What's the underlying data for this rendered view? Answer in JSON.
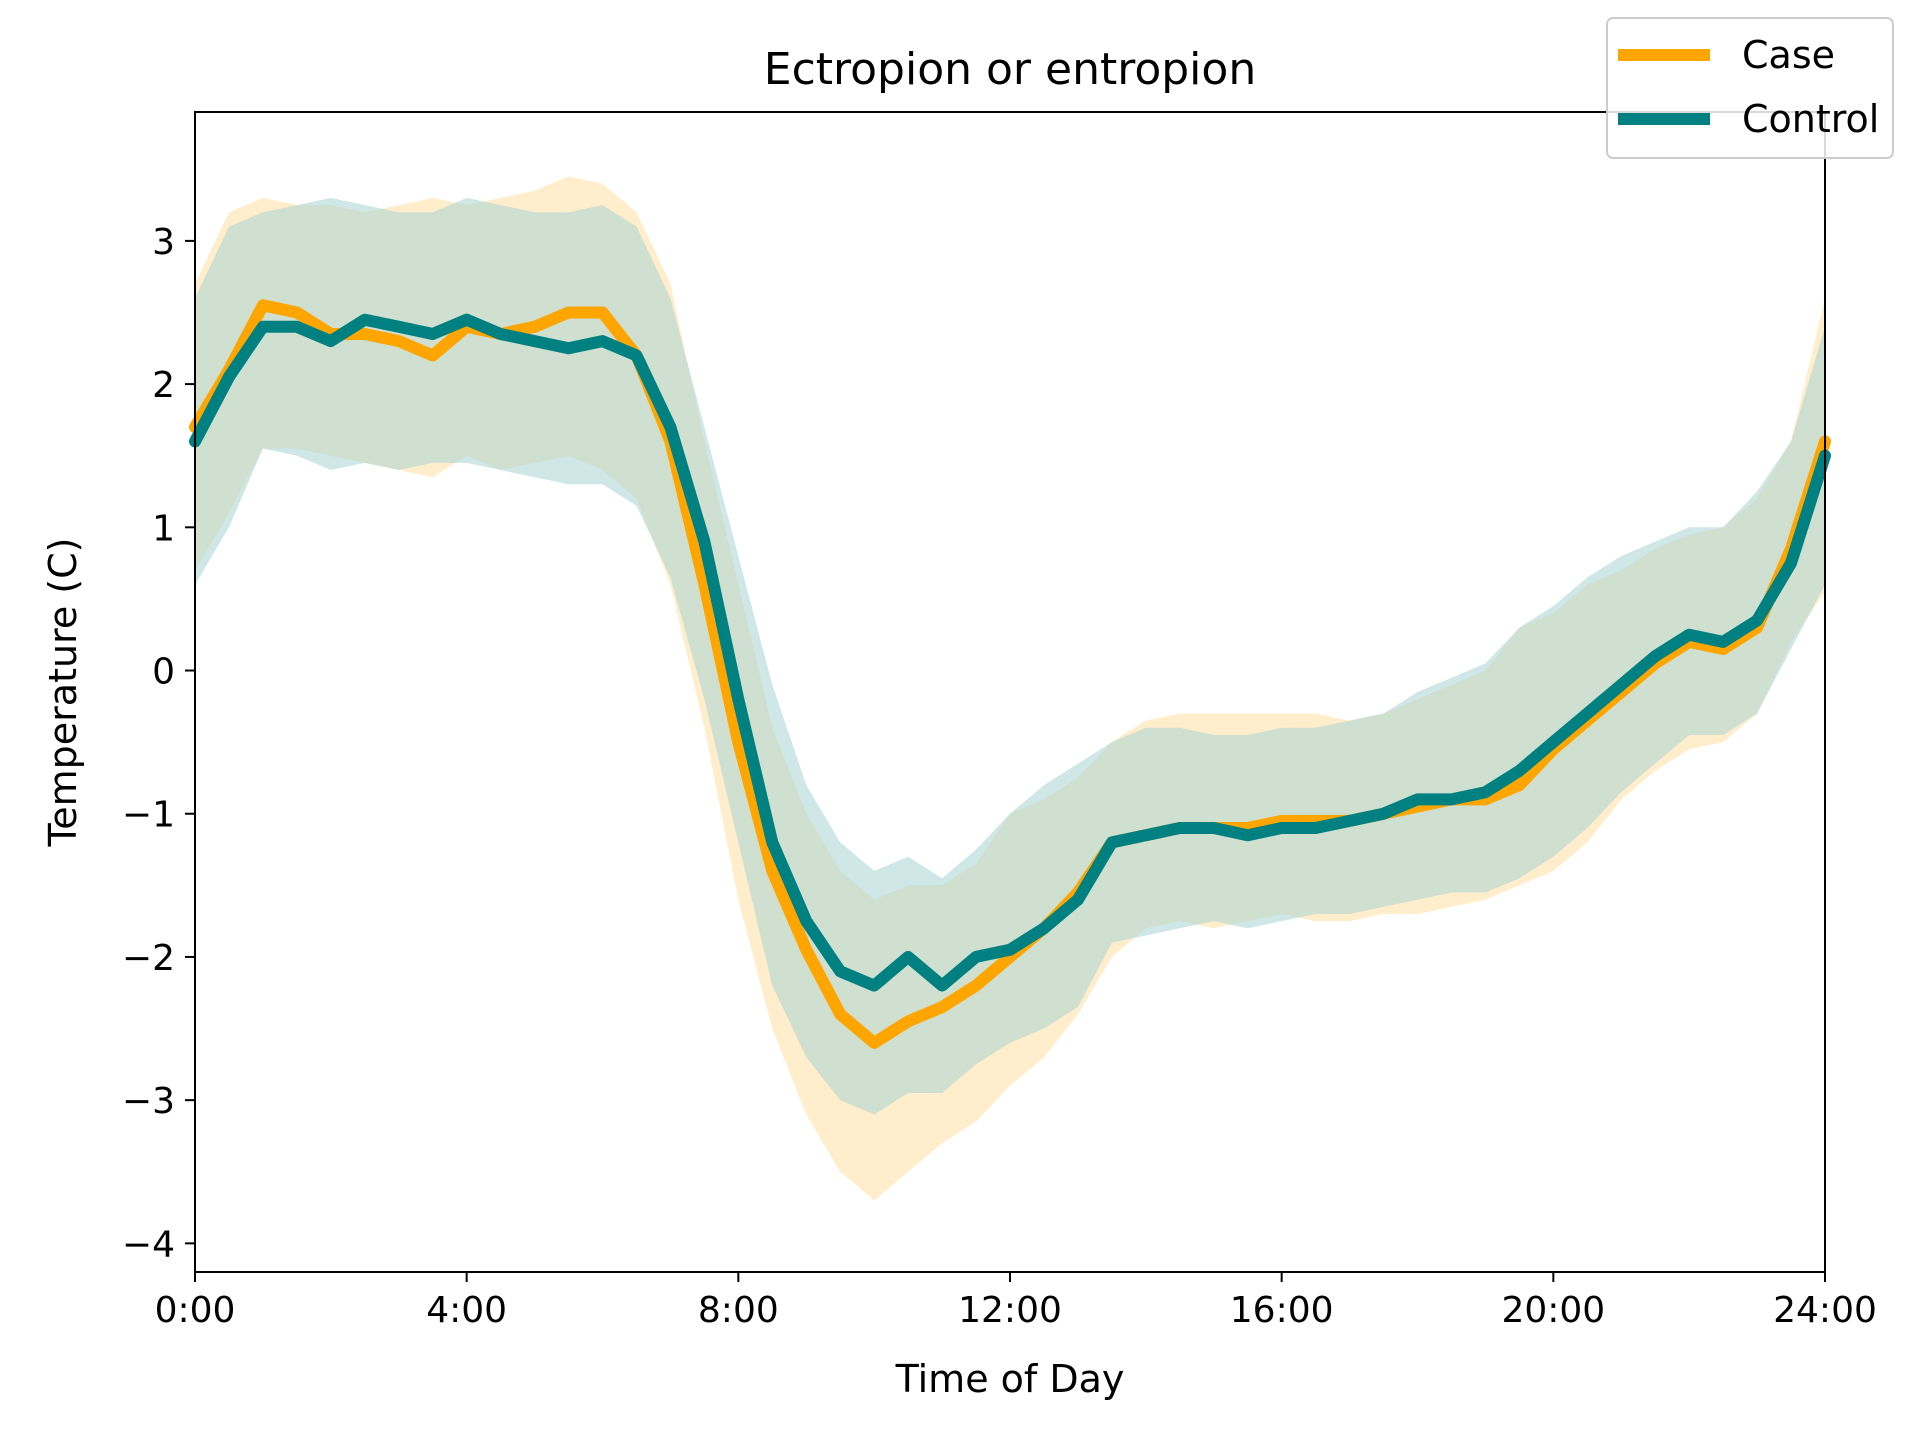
{
  "chart_data": {
    "type": "line",
    "title": "Ectropion or entropion",
    "xlabel": "Time of Day",
    "ylabel": "Temperature (C)",
    "xlim": [
      0,
      24
    ],
    "ylim": [
      -4.2,
      3.9
    ],
    "x_ticks": [
      {
        "value": 0,
        "label": "0:00"
      },
      {
        "value": 4,
        "label": "4:00"
      },
      {
        "value": 8,
        "label": "8:00"
      },
      {
        "value": 12,
        "label": "12:00"
      },
      {
        "value": 16,
        "label": "16:00"
      },
      {
        "value": 20,
        "label": "20:00"
      },
      {
        "value": 24,
        "label": "24:00"
      }
    ],
    "y_ticks": [
      {
        "value": 3,
        "label": "3"
      },
      {
        "value": 2,
        "label": "2"
      },
      {
        "value": 1,
        "label": "1"
      },
      {
        "value": 0,
        "label": "0"
      },
      {
        "value": -1,
        "label": "−1"
      },
      {
        "value": -2,
        "label": "−2"
      },
      {
        "value": -3,
        "label": "−3"
      },
      {
        "value": -4,
        "label": "−4"
      }
    ],
    "grid": false,
    "legend_position": "top-right",
    "x": [
      0,
      0.5,
      1,
      1.5,
      2,
      2.5,
      3,
      3.5,
      4,
      4.5,
      5,
      5.5,
      6,
      6.5,
      7,
      7.5,
      8,
      8.5,
      9,
      9.5,
      10,
      10.5,
      11,
      11.5,
      12,
      12.5,
      13,
      13.5,
      14,
      14.5,
      15,
      15.5,
      16,
      16.5,
      17,
      17.5,
      18,
      18.5,
      19,
      19.5,
      20,
      20.5,
      21,
      21.5,
      22,
      22.5,
      23,
      23.5,
      24
    ],
    "series": [
      {
        "name": "Case",
        "color": "#FFA500",
        "band_color": "#FFE4B0",
        "values": [
          1.7,
          2.1,
          2.55,
          2.5,
          2.35,
          2.35,
          2.3,
          2.2,
          2.4,
          2.35,
          2.4,
          2.5,
          2.5,
          2.2,
          1.6,
          0.6,
          -0.5,
          -1.4,
          -1.95,
          -2.4,
          -2.6,
          -2.45,
          -2.35,
          -2.2,
          -2.0,
          -1.8,
          -1.55,
          -1.2,
          -1.15,
          -1.1,
          -1.1,
          -1.1,
          -1.05,
          -1.05,
          -1.05,
          -1.0,
          -0.95,
          -0.9,
          -0.9,
          -0.8,
          -0.55,
          -0.35,
          -0.15,
          0.05,
          0.2,
          0.15,
          0.3,
          0.85,
          1.6
        ],
        "upper": [
          2.7,
          3.2,
          3.3,
          3.25,
          3.25,
          3.2,
          3.25,
          3.3,
          3.25,
          3.3,
          3.35,
          3.45,
          3.4,
          3.2,
          2.7,
          1.6,
          0.6,
          -0.4,
          -1.0,
          -1.4,
          -1.6,
          -1.5,
          -1.5,
          -1.35,
          -1.0,
          -0.9,
          -0.75,
          -0.5,
          -0.35,
          -0.3,
          -0.3,
          -0.3,
          -0.3,
          -0.3,
          -0.35,
          -0.3,
          -0.2,
          -0.1,
          0.0,
          0.3,
          0.4,
          0.6,
          0.7,
          0.85,
          0.95,
          1.0,
          1.2,
          1.6,
          2.6
        ],
        "lower": [
          0.7,
          1.1,
          1.55,
          1.55,
          1.5,
          1.45,
          1.4,
          1.35,
          1.5,
          1.4,
          1.45,
          1.5,
          1.4,
          1.2,
          0.6,
          -0.4,
          -1.6,
          -2.5,
          -3.1,
          -3.5,
          -3.7,
          -3.5,
          -3.3,
          -3.15,
          -2.9,
          -2.7,
          -2.4,
          -2.0,
          -1.8,
          -1.75,
          -1.8,
          -1.75,
          -1.7,
          -1.75,
          -1.75,
          -1.7,
          -1.7,
          -1.65,
          -1.6,
          -1.5,
          -1.4,
          -1.2,
          -0.9,
          -0.7,
          -0.55,
          -0.5,
          -0.3,
          0.2,
          0.55
        ]
      },
      {
        "name": "Control",
        "color": "#008080",
        "band_color": "#A8D4D4",
        "values": [
          1.6,
          2.05,
          2.4,
          2.4,
          2.3,
          2.45,
          2.4,
          2.35,
          2.45,
          2.35,
          2.3,
          2.25,
          2.3,
          2.2,
          1.7,
          0.9,
          -0.2,
          -1.2,
          -1.75,
          -2.1,
          -2.2,
          -2.0,
          -2.2,
          -2.0,
          -1.95,
          -1.8,
          -1.6,
          -1.2,
          -1.15,
          -1.1,
          -1.1,
          -1.15,
          -1.1,
          -1.1,
          -1.05,
          -1.0,
          -0.9,
          -0.9,
          -0.85,
          -0.7,
          -0.5,
          -0.3,
          -0.1,
          0.1,
          0.25,
          0.2,
          0.35,
          0.75,
          1.5
        ],
        "upper": [
          2.6,
          3.1,
          3.2,
          3.25,
          3.3,
          3.25,
          3.2,
          3.2,
          3.3,
          3.25,
          3.2,
          3.2,
          3.25,
          3.1,
          2.6,
          1.7,
          0.8,
          -0.1,
          -0.8,
          -1.2,
          -1.4,
          -1.3,
          -1.45,
          -1.25,
          -1.0,
          -0.8,
          -0.65,
          -0.5,
          -0.4,
          -0.4,
          -0.45,
          -0.45,
          -0.4,
          -0.4,
          -0.35,
          -0.3,
          -0.15,
          -0.05,
          0.05,
          0.3,
          0.45,
          0.65,
          0.8,
          0.9,
          1.0,
          1.0,
          1.25,
          1.6,
          2.4
        ],
        "lower": [
          0.6,
          1.0,
          1.55,
          1.5,
          1.4,
          1.45,
          1.4,
          1.45,
          1.45,
          1.4,
          1.35,
          1.3,
          1.3,
          1.15,
          0.65,
          -0.2,
          -1.2,
          -2.2,
          -2.7,
          -3.0,
          -3.1,
          -2.95,
          -2.95,
          -2.75,
          -2.6,
          -2.5,
          -2.35,
          -1.9,
          -1.85,
          -1.8,
          -1.75,
          -1.8,
          -1.75,
          -1.7,
          -1.7,
          -1.65,
          -1.6,
          -1.55,
          -1.55,
          -1.45,
          -1.3,
          -1.1,
          -0.85,
          -0.65,
          -0.45,
          -0.45,
          -0.3,
          0.15,
          0.6
        ]
      }
    ]
  }
}
